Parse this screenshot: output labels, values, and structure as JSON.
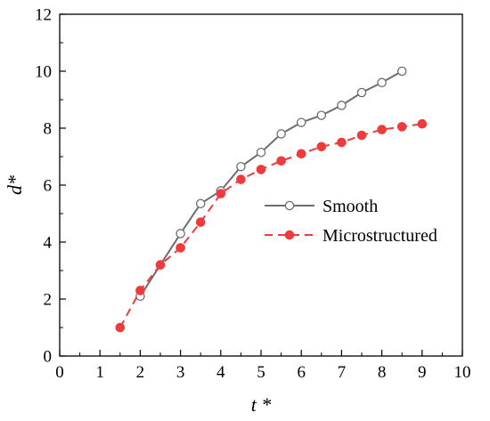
{
  "chart_data": {
    "type": "line",
    "title": "",
    "xlabel": "t *",
    "ylabel": "d*",
    "xlim": [
      0,
      10
    ],
    "ylim": [
      0,
      12
    ],
    "xticks": [
      0,
      1,
      2,
      3,
      4,
      5,
      6,
      7,
      8,
      9,
      10
    ],
    "yticks": [
      0,
      2,
      4,
      6,
      8,
      10,
      12
    ],
    "grid": false,
    "legend_position": "center-right",
    "series": [
      {
        "name": "Smooth",
        "color": "#6e6e6e",
        "marker": "open-circle",
        "line_style": "solid",
        "x": [
          2.0,
          2.5,
          3.0,
          3.5,
          4.0,
          4.5,
          5.0,
          5.5,
          6.0,
          6.5,
          7.0,
          7.5,
          8.0,
          8.5
        ],
        "y": [
          2.1,
          3.2,
          4.3,
          5.35,
          5.8,
          6.65,
          7.15,
          7.8,
          8.2,
          8.45,
          8.8,
          9.25,
          9.6,
          10.0
        ]
      },
      {
        "name": "Microstructured",
        "color": "#ee3b3b",
        "marker": "filled-circle",
        "line_style": "dashed",
        "x": [
          1.5,
          2.0,
          2.5,
          3.0,
          3.5,
          4.0,
          4.5,
          5.0,
          5.5,
          6.0,
          6.5,
          7.0,
          7.5,
          8.0,
          8.5,
          9.0
        ],
        "y": [
          1.0,
          2.3,
          3.2,
          3.8,
          4.7,
          5.7,
          6.2,
          6.55,
          6.85,
          7.1,
          7.35,
          7.5,
          7.75,
          7.95,
          8.05,
          8.15
        ]
      }
    ]
  }
}
